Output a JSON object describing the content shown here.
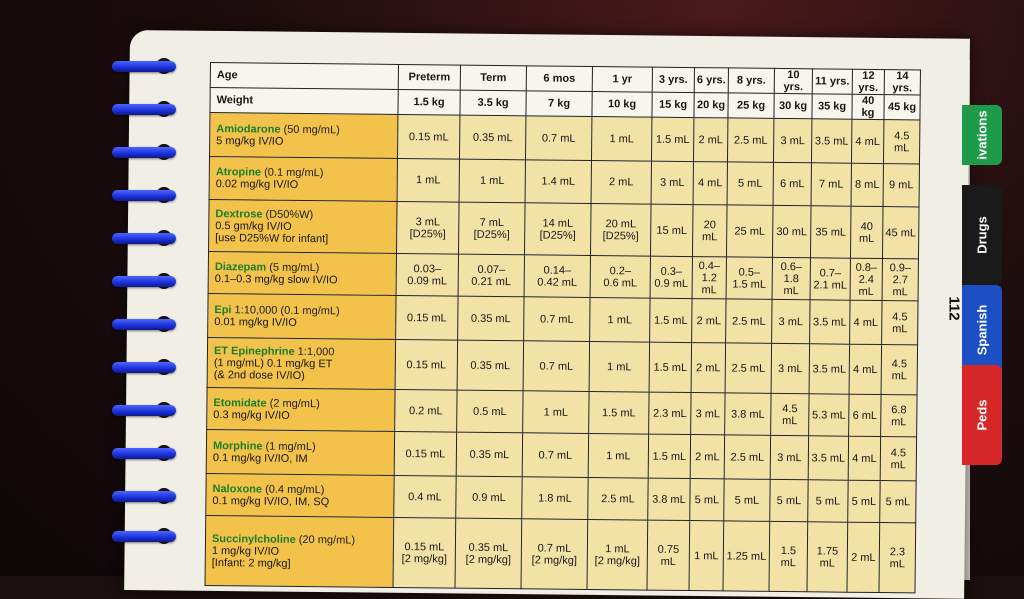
{
  "table": {
    "header_age_label": "Age",
    "header_weight_label": "Weight",
    "ages": [
      "Preterm",
      "Term",
      "6 mos",
      "1 yr",
      "3 yrs.",
      "6 yrs.",
      "8 yrs.",
      "10 yrs.",
      "11 yrs.",
      "12 yrs.",
      "14 yrs."
    ],
    "weights": [
      "1.5 kg",
      "3.5 kg",
      "7 kg",
      "10 kg",
      "15 kg",
      "20 kg",
      "25 kg",
      "30 kg",
      "35 kg",
      "40 kg",
      "45 kg"
    ],
    "rows": [
      {
        "name": "Amiodarone",
        "conc": " (50 mg/mL)",
        "lines": [
          "5 mg/kg IV/IO"
        ],
        "doses": [
          "0.15 mL",
          "0.35 mL",
          "0.7 mL",
          "1 mL",
          "1.5 mL",
          "2 mL",
          "2.5 mL",
          "3 mL",
          "3.5 mL",
          "4 mL",
          "4.5 mL"
        ]
      },
      {
        "name": "Atropine",
        "conc": " (0.1 mg/mL)",
        "lines": [
          "0.02 mg/kg IV/IO"
        ],
        "doses": [
          "1 mL",
          "1 mL",
          "1.4 mL",
          "2 mL",
          "3 mL",
          "4 mL",
          "5 mL",
          "6 mL",
          "7 mL",
          "8 mL",
          "9 mL"
        ]
      },
      {
        "name": "Dextrose",
        "conc": " (D50%W)",
        "lines": [
          "0.5 gm/kg IV/IO",
          "[use D25%W for infant]"
        ],
        "doses": [
          "3 mL\n[D25%]",
          "7 mL\n[D25%]",
          "14 mL\n[D25%]",
          "20 mL\n[D25%]",
          "15 mL",
          "20 mL",
          "25 mL",
          "30 mL",
          "35 mL",
          "40 mL",
          "45 mL"
        ]
      },
      {
        "name": "Diazepam",
        "conc": " (5 mg/mL)",
        "lines": [
          "0.1–0.3 mg/kg slow IV/IO"
        ],
        "doses": [
          "0.03–\n0.09 mL",
          "0.07–\n0.21 mL",
          "0.14–\n0.42 mL",
          "0.2–\n0.6 mL",
          "0.3–\n0.9 mL",
          "0.4–\n1.2 mL",
          "0.5–\n1.5 mL",
          "0.6–\n1.8 mL",
          "0.7–\n2.1 mL",
          "0.8–\n2.4 mL",
          "0.9–\n2.7 mL"
        ]
      },
      {
        "name": "Epi",
        "conc": " 1:10,000 (0.1 mg/mL)",
        "lines": [
          "0.01 mg/kg IV/IO"
        ],
        "doses": [
          "0.15 mL",
          "0.35 mL",
          "0.7 mL",
          "1 mL",
          "1.5 mL",
          "2 mL",
          "2.5 mL",
          "3 mL",
          "3.5 mL",
          "4 mL",
          "4.5 mL"
        ]
      },
      {
        "name": "ET Epinephrine",
        "conc": " 1:1,000",
        "lines": [
          "(1 mg/mL) 0.1 mg/kg ET",
          "(& 2nd dose IV/IO)"
        ],
        "doses": [
          "0.15 mL",
          "0.35 mL",
          "0.7 mL",
          "1 mL",
          "1.5 mL",
          "2 mL",
          "2.5 mL",
          "3 mL",
          "3.5 mL",
          "4 mL",
          "4.5 mL"
        ]
      },
      {
        "name": "Etomidate",
        "conc": " (2 mg/mL)",
        "lines": [
          "0.3 mg/kg IV/IO"
        ],
        "doses": [
          "0.2 mL",
          "0.5 mL",
          "1 mL",
          "1.5 mL",
          "2.3 mL",
          "3 mL",
          "3.8 mL",
          "4.5 mL",
          "5.3 mL",
          "6 mL",
          "6.8 mL"
        ]
      },
      {
        "name": "Morphine",
        "conc": " (1 mg/mL)",
        "lines": [
          "0.1 mg/kg IV/IO, IM"
        ],
        "doses": [
          "0.15 mL",
          "0.35 mL",
          "0.7 mL",
          "1 mL",
          "1.5 mL",
          "2 mL",
          "2.5 mL",
          "3 mL",
          "3.5 mL",
          "4 mL",
          "4.5 mL"
        ]
      },
      {
        "name": "Naloxone",
        "conc": " (0.4 mg/mL)",
        "lines": [
          "0.1 mg/kg IV/IO, IM, SQ"
        ],
        "doses": [
          "0.4 mL",
          "0.9 mL",
          "1.8 mL",
          "2.5 mL",
          "3.8 mL",
          "5 mL",
          "5 mL",
          "5 mL",
          "5 mL",
          "5 mL",
          "5 mL"
        ]
      },
      {
        "name": "Succinylcholine",
        "conc": " (20 mg/mL)",
        "lines": [
          "1 mg/kg IV/IO",
          "[Infant: 2 mg/kg]"
        ],
        "doses": [
          "0.15 mL\n[2 mg/kg]",
          "0.35 mL\n[2 mg/kg]",
          "0.7 mL\n[2 mg/kg]",
          "1 mL\n[2 mg/kg]",
          "0.75 mL",
          "1 mL",
          "1.25 mL",
          "1.5 mL",
          "1.75 mL",
          "2 mL",
          "2.3 mL"
        ]
      }
    ]
  },
  "page_number": "112",
  "tabs": [
    {
      "label": "ivations",
      "color": "#1e9a4a"
    },
    {
      "label": "Drugs",
      "color": "#1a1a1a"
    },
    {
      "label": "Spanish",
      "color": "#1d4fc4"
    },
    {
      "label": "Peds",
      "color": "#d62828"
    }
  ],
  "colors": {
    "label_fill": "#f3c24a",
    "value_fill": "#f3e2a6",
    "drug_name": "#1b7d2b",
    "rings": "#1a2fd6"
  }
}
